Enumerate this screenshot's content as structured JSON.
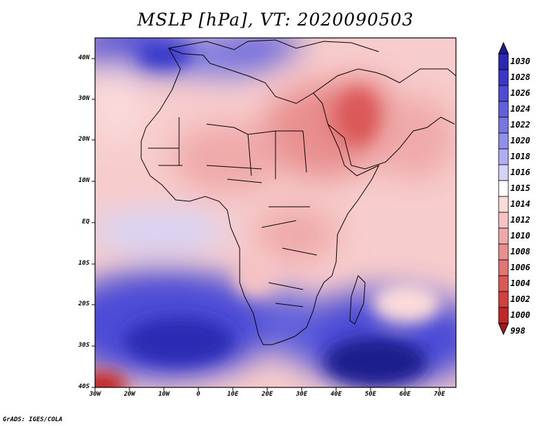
{
  "title": "MSLP [hPa], VT: 2020090503",
  "credit": "GrADS: IGES/COLA",
  "lat_labels": [
    "40N",
    "30N",
    "20N",
    "10N",
    "EQ",
    "10S",
    "20S",
    "30S",
    "40S"
  ],
  "lon_labels": [
    "30W",
    "20W",
    "10W",
    "0",
    "10E",
    "20E",
    "30E",
    "40E",
    "50E",
    "60E",
    "70E"
  ],
  "colorbar": {
    "labels": [
      "1030",
      "1028",
      "1026",
      "1024",
      "1022",
      "1020",
      "1018",
      "1016",
      "1015",
      "1014",
      "1012",
      "1010",
      "1008",
      "1006",
      "1004",
      "1002",
      "1000",
      "998"
    ],
    "colors": [
      "#1d1a8c",
      "#2a29b4",
      "#3937c8",
      "#4c4cd6",
      "#6060dc",
      "#7877e2",
      "#9090e8",
      "#aeaef0",
      "#d4d4f8",
      "#ffffff",
      "#fadada",
      "#f5c3c3",
      "#efa9a9",
      "#e98f8f",
      "#e27474",
      "#db5858",
      "#d43f3f",
      "#c02828",
      "#a51818"
    ]
  }
}
